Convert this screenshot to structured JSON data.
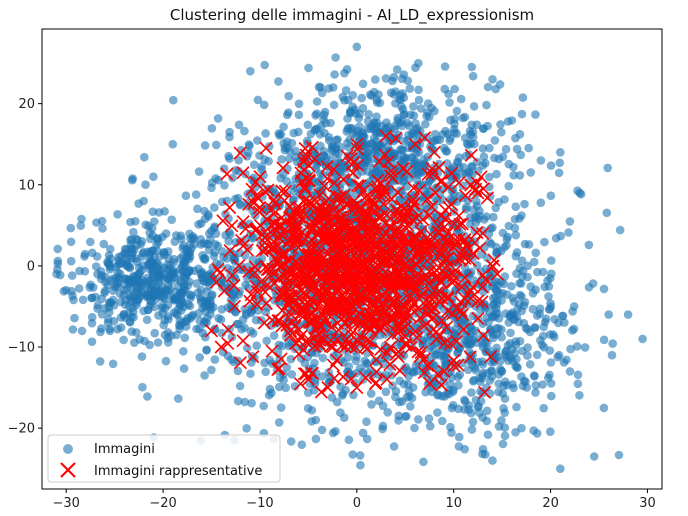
{
  "chart_data": {
    "type": "scatter",
    "title": "Clustering delle immagini - AI_LD_expressionism",
    "xlim": [
      -32.5,
      31.5
    ],
    "ylim": [
      -27.5,
      29.2
    ],
    "xticks": [
      -30,
      -20,
      -10,
      0,
      10,
      20,
      30
    ],
    "yticks": [
      -20,
      -10,
      0,
      10,
      20
    ],
    "grid": false,
    "legend_position": "lower-left",
    "colors": {
      "images": "#1f77b4",
      "representatives": "#ff0000"
    },
    "series": [
      {
        "name": "Immagini",
        "marker": "circle",
        "point_count_estimate": 3000,
        "extent": {
          "x": [
            -31,
            29.5
          ],
          "y": [
            -25,
            27
          ]
        },
        "density_center": [
          0,
          0
        ],
        "outliers": [
          [
            0,
            27
          ],
          [
            -11,
            24
          ],
          [
            14,
            23
          ],
          [
            21,
            14
          ],
          [
            26,
            -6
          ],
          [
            29.5,
            -9
          ],
          [
            28,
            -6
          ],
          [
            21,
            -25
          ],
          [
            24.5,
            -23.5
          ],
          [
            14,
            -24
          ],
          [
            -31,
            -1
          ],
          [
            -30,
            -3
          ],
          [
            25.5,
            -17.5
          ],
          [
            22,
            -13
          ],
          [
            19,
            13
          ],
          [
            23,
            9
          ],
          [
            -21,
            11
          ],
          [
            -22,
            8
          ],
          [
            -19,
            15
          ],
          [
            17,
            -20
          ]
        ]
      },
      {
        "name": "Immagini rappresentative",
        "marker": "x",
        "point_count_estimate": 1100,
        "extent": {
          "x": [
            -15,
            14.5
          ],
          "y": [
            -16,
            16
          ]
        },
        "density_center": [
          0,
          0
        ],
        "outliers": [
          [
            -15,
            -8
          ],
          [
            -14,
            -10
          ],
          [
            -14.5,
            -2
          ],
          [
            14,
            0
          ],
          [
            14.5,
            -1
          ],
          [
            12.5,
            9
          ],
          [
            13,
            4
          ],
          [
            12.5,
            -6.5
          ],
          [
            9,
            -13
          ],
          [
            3,
            16
          ],
          [
            0,
            15
          ],
          [
            -5,
            -14
          ],
          [
            -3,
            -15
          ],
          [
            0,
            -15
          ],
          [
            -10,
            11
          ],
          [
            6,
            15
          ],
          [
            8,
            14
          ]
        ]
      }
    ]
  }
}
